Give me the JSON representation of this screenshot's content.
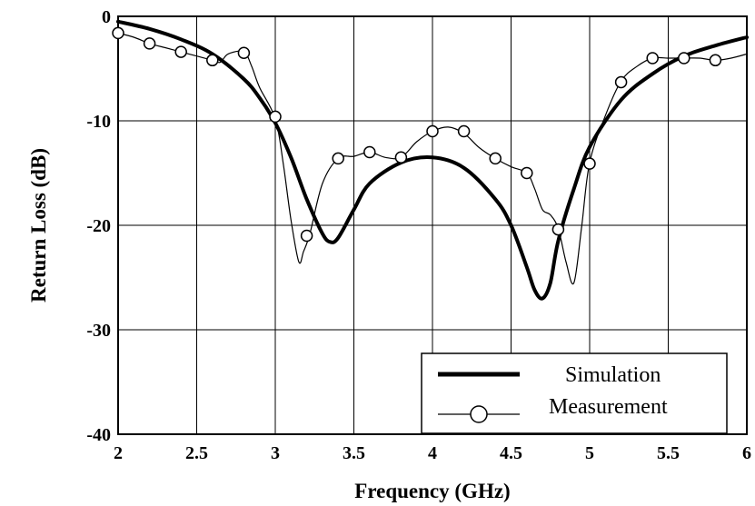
{
  "chart_data": {
    "type": "line",
    "xlabel": "Frequency (GHz)",
    "ylabel": "Return Loss (dB)",
    "xlim": [
      2,
      6
    ],
    "ylim": [
      -40,
      0
    ],
    "xticks": [
      2,
      2.5,
      3,
      3.5,
      4,
      4.5,
      5,
      5.5,
      6
    ],
    "yticks": [
      0,
      -10,
      -20,
      -30,
      -40
    ],
    "xtick_labels": [
      "2",
      "2.5",
      "3",
      "3.5",
      "4",
      "4.5",
      "5",
      "5.5",
      "6"
    ],
    "ytick_labels": [
      "0",
      "-10",
      "-20",
      "-30",
      "-40"
    ],
    "grid": true,
    "legend_position": "bottom-right",
    "series": [
      {
        "name": "Simulation",
        "style": "thick-line",
        "x": [
          2.0,
          2.2,
          2.4,
          2.6,
          2.8,
          2.9,
          3.0,
          3.1,
          3.2,
          3.3,
          3.35,
          3.4,
          3.5,
          3.6,
          3.8,
          4.0,
          4.2,
          4.4,
          4.5,
          4.6,
          4.65,
          4.7,
          4.75,
          4.8,
          4.9,
          5.0,
          5.2,
          5.4,
          5.6,
          5.8,
          6.0
        ],
        "y": [
          -0.5,
          -1.2,
          -2.2,
          -3.6,
          -6.0,
          -7.8,
          -10.2,
          -13.5,
          -17.5,
          -20.8,
          -21.6,
          -21.2,
          -18.5,
          -16.0,
          -14.0,
          -13.5,
          -14.5,
          -17.5,
          -20.0,
          -24.0,
          -26.2,
          -27.0,
          -25.5,
          -21.5,
          -16.5,
          -12.5,
          -8.0,
          -5.5,
          -3.8,
          -2.8,
          -2.0
        ]
      },
      {
        "name": "Measurement",
        "style": "thin-line-circles",
        "x": [
          2.0,
          2.1,
          2.2,
          2.3,
          2.4,
          2.5,
          2.6,
          2.65,
          2.7,
          2.8,
          2.85,
          2.9,
          3.0,
          3.05,
          3.1,
          3.15,
          3.18,
          3.22,
          3.3,
          3.4,
          3.5,
          3.6,
          3.7,
          3.8,
          3.9,
          4.0,
          4.1,
          4.2,
          4.3,
          4.4,
          4.5,
          4.6,
          4.65,
          4.7,
          4.75,
          4.8,
          4.85,
          4.9,
          4.95,
          5.0,
          5.1,
          5.2,
          5.3,
          5.4,
          5.5,
          5.6,
          5.7,
          5.8,
          5.9,
          6.0
        ],
        "y": [
          -1.6,
          -2.0,
          -2.6,
          -3.0,
          -3.4,
          -3.8,
          -4.2,
          -4.4,
          -3.6,
          -3.4,
          -4.8,
          -6.8,
          -9.8,
          -14.0,
          -19.5,
          -23.5,
          -22.5,
          -20.8,
          -16.0,
          -13.6,
          -13.4,
          -13.0,
          -13.5,
          -13.5,
          -12.0,
          -11.0,
          -10.6,
          -11.2,
          -12.6,
          -13.6,
          -14.4,
          -15.0,
          -16.5,
          -18.5,
          -19.0,
          -20.3,
          -23.5,
          -25.5,
          -20.0,
          -14.0,
          -9.5,
          -6.2,
          -4.8,
          -4.0,
          -4.0,
          -4.0,
          -4.0,
          -4.2,
          -4.0,
          -3.6
        ]
      }
    ],
    "marker_points": {
      "series": "Measurement",
      "x": [
        2.0,
        2.2,
        2.4,
        2.6,
        2.8,
        3.0,
        3.2,
        3.4,
        3.6,
        3.8,
        4.0,
        4.2,
        4.4,
        4.6,
        4.8,
        5.0,
        5.2,
        5.4,
        5.6,
        5.8
      ],
      "y": [
        -1.6,
        -2.6,
        -3.4,
        -4.2,
        -3.5,
        -9.6,
        -21.0,
        -13.6,
        -13.0,
        -13.5,
        -11.0,
        -11.0,
        -13.6,
        -15.0,
        -20.4,
        -14.1,
        -6.3,
        -4.0,
        -4.0,
        -4.2
      ]
    }
  }
}
